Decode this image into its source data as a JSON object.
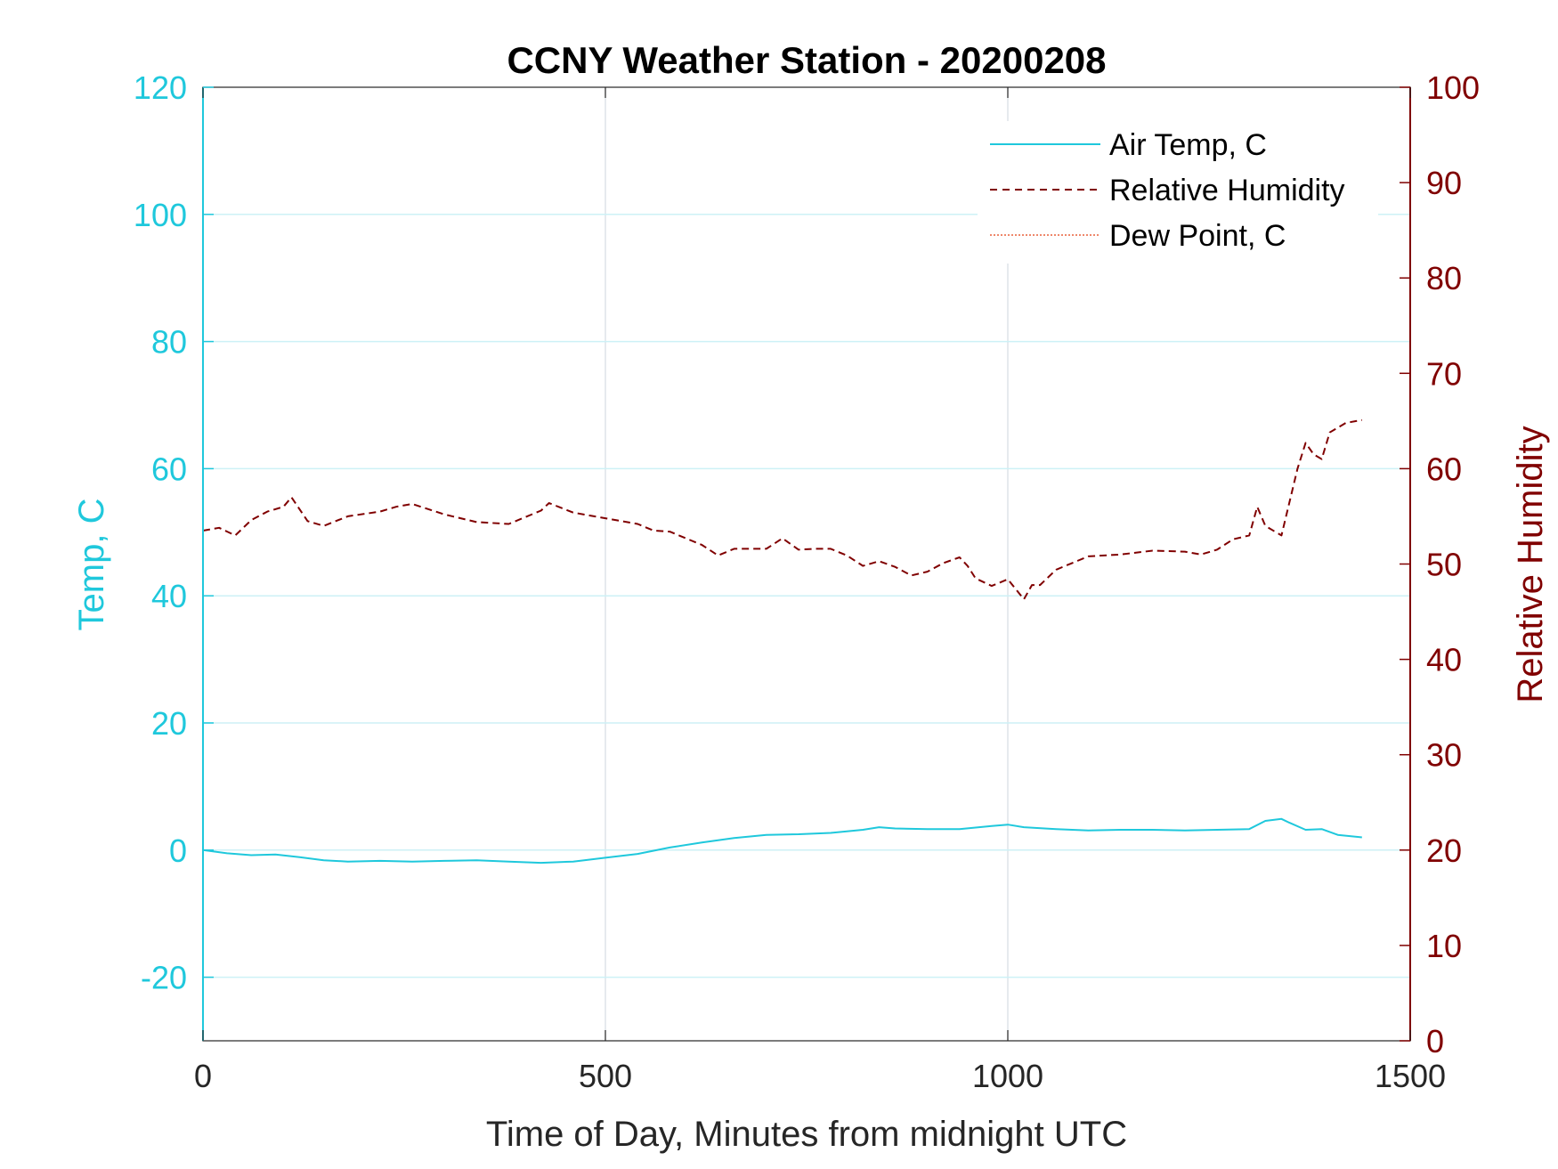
{
  "chart_data": {
    "type": "line",
    "title": "CCNY Weather Station - 20200208",
    "xlabel": "Time of Day, Minutes from midnight UTC",
    "ylabel_left": "Temp, C",
    "ylabel_right": "Relative Humidity",
    "xlim": [
      0,
      1500
    ],
    "ylim_left": [
      -30,
      120
    ],
    "ylim_right": [
      0,
      100
    ],
    "xticks": [
      0,
      500,
      1000,
      1500
    ],
    "yticks_left": [
      -20,
      0,
      20,
      40,
      60,
      80,
      100,
      120
    ],
    "yticks_right": [
      0,
      10,
      20,
      30,
      40,
      50,
      60,
      70,
      80,
      90,
      100
    ],
    "grid": true,
    "legend_position": "top-right",
    "colors": {
      "left_axis": "#1fc8dc",
      "right_axis": "#800000",
      "air_temp": "#1fc8dc",
      "humidity": "#800000",
      "dew_point": "#e8603c",
      "grid_x": "#d5dbe3",
      "grid_y": "#cdf1f6"
    },
    "series": [
      {
        "name": "Air Temp, C",
        "axis": "left",
        "style": "solid",
        "x": [
          0,
          30,
          60,
          90,
          120,
          150,
          180,
          220,
          260,
          300,
          340,
          380,
          420,
          460,
          500,
          540,
          580,
          620,
          660,
          700,
          740,
          780,
          820,
          840,
          860,
          900,
          940,
          980,
          1000,
          1020,
          1060,
          1100,
          1140,
          1180,
          1220,
          1260,
          1300,
          1320,
          1340,
          1350,
          1370,
          1390,
          1410,
          1440
        ],
        "values": [
          0.0,
          -0.5,
          -0.8,
          -0.7,
          -1.1,
          -1.6,
          -1.8,
          -1.7,
          -1.8,
          -1.7,
          -1.6,
          -1.8,
          -2.0,
          -1.8,
          -1.2,
          -0.6,
          0.4,
          1.2,
          1.9,
          2.4,
          2.5,
          2.7,
          3.2,
          3.6,
          3.4,
          3.3,
          3.3,
          3.8,
          4.0,
          3.6,
          3.3,
          3.1,
          3.2,
          3.2,
          3.1,
          3.2,
          3.3,
          4.6,
          4.9,
          4.3,
          3.2,
          3.3,
          2.4,
          2.0
        ]
      },
      {
        "name": "Relative Humidity",
        "axis": "right",
        "style": "dashed",
        "x": [
          0,
          20,
          40,
          60,
          80,
          100,
          110,
          130,
          150,
          180,
          220,
          240,
          260,
          300,
          340,
          380,
          420,
          430,
          460,
          500,
          540,
          560,
          580,
          620,
          640,
          660,
          700,
          720,
          740,
          760,
          780,
          800,
          820,
          840,
          860,
          880,
          900,
          920,
          940,
          950,
          960,
          980,
          1000,
          1020,
          1030,
          1040,
          1060,
          1080,
          1100,
          1140,
          1180,
          1220,
          1240,
          1260,
          1280,
          1300,
          1310,
          1320,
          1340,
          1360,
          1370,
          1380,
          1390,
          1400,
          1420,
          1440
        ],
        "values": [
          53.5,
          53.8,
          53.0,
          54.6,
          55.5,
          56.0,
          57.0,
          54.5,
          54.0,
          55.0,
          55.5,
          56.0,
          56.3,
          55.2,
          54.4,
          54.2,
          55.6,
          56.4,
          55.4,
          54.8,
          54.2,
          53.5,
          53.4,
          52.0,
          50.9,
          51.6,
          51.6,
          52.7,
          51.5,
          51.6,
          51.6,
          50.9,
          49.8,
          50.3,
          49.7,
          48.8,
          49.2,
          50.1,
          50.7,
          49.8,
          48.5,
          47.7,
          48.4,
          46.3,
          47.8,
          47.8,
          49.4,
          50.1,
          50.8,
          51.0,
          51.4,
          51.3,
          51.0,
          51.5,
          52.6,
          53.0,
          56.0,
          54.0,
          53.0,
          60.0,
          62.7,
          61.5,
          61.0,
          63.8,
          64.8,
          65.1
        ]
      },
      {
        "name": "Dew Point, C",
        "axis": "left",
        "style": "dotted",
        "x": [],
        "values": []
      }
    ]
  }
}
